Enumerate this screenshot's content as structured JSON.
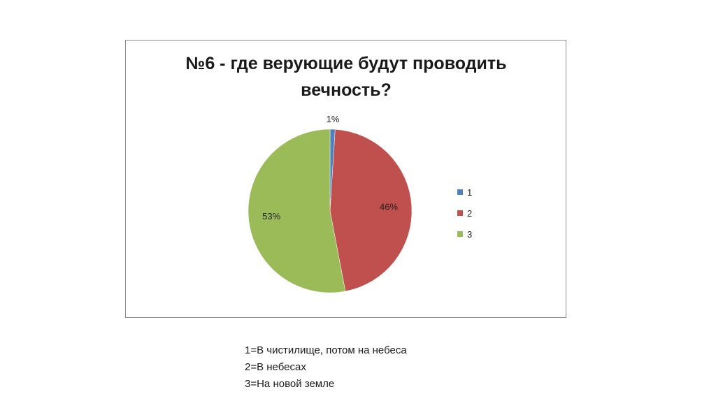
{
  "chart_data": {
    "type": "pie",
    "title": "№6 - где верующие будут проводить вечность?",
    "categories": [
      "1",
      "2",
      "3"
    ],
    "values": [
      1,
      46,
      53
    ],
    "data_labels": [
      "1%",
      "46%",
      "53%"
    ],
    "colors": [
      "#4f81bd",
      "#c0504d",
      "#9bbb59"
    ],
    "legend_position": "right",
    "legend": [
      "1",
      "2",
      "3"
    ]
  },
  "notes": [
    "1=В чистилище, потом на небеса",
    "2=В небесах",
    "3=На новой земле"
  ]
}
